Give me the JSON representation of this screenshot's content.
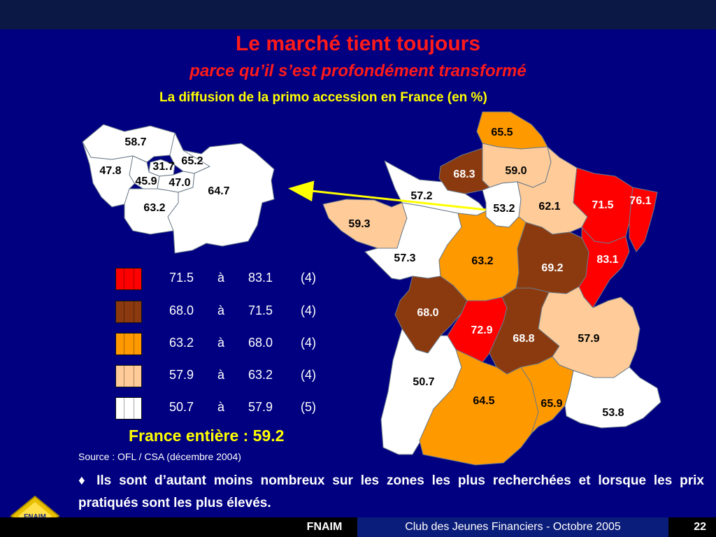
{
  "header": {
    "title": "Le marché tient toujours",
    "subtitle": "parce qu’il s’est profondément transformé",
    "chart_title": "La diffusion de la primo accession en France (en %)"
  },
  "colors": {
    "background": "#000080",
    "title": "#ff1a1a",
    "accent": "#ffff00",
    "class_1": "#ff0000",
    "class_2": "#8b3a0f",
    "class_3": "#ff9900",
    "class_4": "#ffcc99",
    "class_5": "#ffffff"
  },
  "map": {
    "regions": [
      {
        "name": "Nord-Pas-de-Calais",
        "value": "65.5",
        "class": 3
      },
      {
        "name": "Picardie",
        "value": "59.0",
        "class": 4
      },
      {
        "name": "Haute-Normandie",
        "value": "68.3",
        "class": 2
      },
      {
        "name": "Basse-Normandie",
        "value": "57.2",
        "class": 5
      },
      {
        "name": "Ile-de-France",
        "value": "53.2",
        "class": 5
      },
      {
        "name": "Champagne-Ardenne",
        "value": "62.1",
        "class": 4
      },
      {
        "name": "Lorraine",
        "value": "71.5",
        "class": 1
      },
      {
        "name": "Alsace",
        "value": "76.1",
        "class": 1
      },
      {
        "name": "Bretagne",
        "value": "59.3",
        "class": 4
      },
      {
        "name": "Pays de la Loire",
        "value": "57.3",
        "class": 5
      },
      {
        "name": "Centre",
        "value": "63.2",
        "class": 3
      },
      {
        "name": "Bourgogne",
        "value": "69.2",
        "class": 2
      },
      {
        "name": "Franche-Comté",
        "value": "83.1",
        "class": 1
      },
      {
        "name": "Poitou-Charentes",
        "value": "68.0",
        "class": 2
      },
      {
        "name": "Limousin",
        "value": "72.9",
        "class": 1
      },
      {
        "name": "Auvergne",
        "value": "68.8",
        "class": 2
      },
      {
        "name": "Rhône-Alpes",
        "value": "57.9",
        "class": 4
      },
      {
        "name": "Aquitaine",
        "value": "50.7",
        "class": 5
      },
      {
        "name": "Midi-Pyrénées",
        "value": "64.5",
        "class": 3
      },
      {
        "name": "Languedoc-Roussillon",
        "value": "65.9",
        "class": 3
      },
      {
        "name": "PACA",
        "value": "53.8",
        "class": 5
      }
    ],
    "idf_detail": [
      {
        "name": "Val-d'Oise",
        "value": "58.7"
      },
      {
        "name": "Yvelines",
        "value": "47.8"
      },
      {
        "name": "Paris",
        "value": "31.7"
      },
      {
        "name": "Seine-Saint-Denis",
        "value": "65.2"
      },
      {
        "name": "Hauts-de-Seine",
        "value": "45.9"
      },
      {
        "name": "Val-de-Marne",
        "value": "47.0"
      },
      {
        "name": "Seine-et-Marne",
        "value": "64.7"
      },
      {
        "name": "Essonne",
        "value": "63.2"
      }
    ]
  },
  "legend": [
    {
      "from": "71.5",
      "sep": "à",
      "to": "83.1",
      "count": "(4)",
      "color": "#ff0000"
    },
    {
      "from": "68.0",
      "sep": "à",
      "to": "71.5",
      "count": "(4)",
      "color": "#8b3a0f"
    },
    {
      "from": "63.2",
      "sep": "à",
      "to": "68.0",
      "count": "(4)",
      "color": "#ff9900"
    },
    {
      "from": "57.9",
      "sep": "à",
      "to": "63.2",
      "count": "(4)",
      "color": "#ffcc99"
    },
    {
      "from": "50.7",
      "sep": "à",
      "to": "57.9",
      "count": "(5)",
      "color": "#ffffff"
    }
  ],
  "total": "France entière : 59.2",
  "source": "Source : OFL / CSA  (décembre 2004)",
  "bullet": "♦ Ils sont d’autant moins nombreux sur les zones les plus recherchées et lorsque les prix pratiqués sont les plus élevés.",
  "footer": {
    "brand": "FNAIM",
    "event": "Club des Jeunes Financiers - Octobre 2005",
    "page": "22"
  },
  "logo_text": "FNAIM"
}
